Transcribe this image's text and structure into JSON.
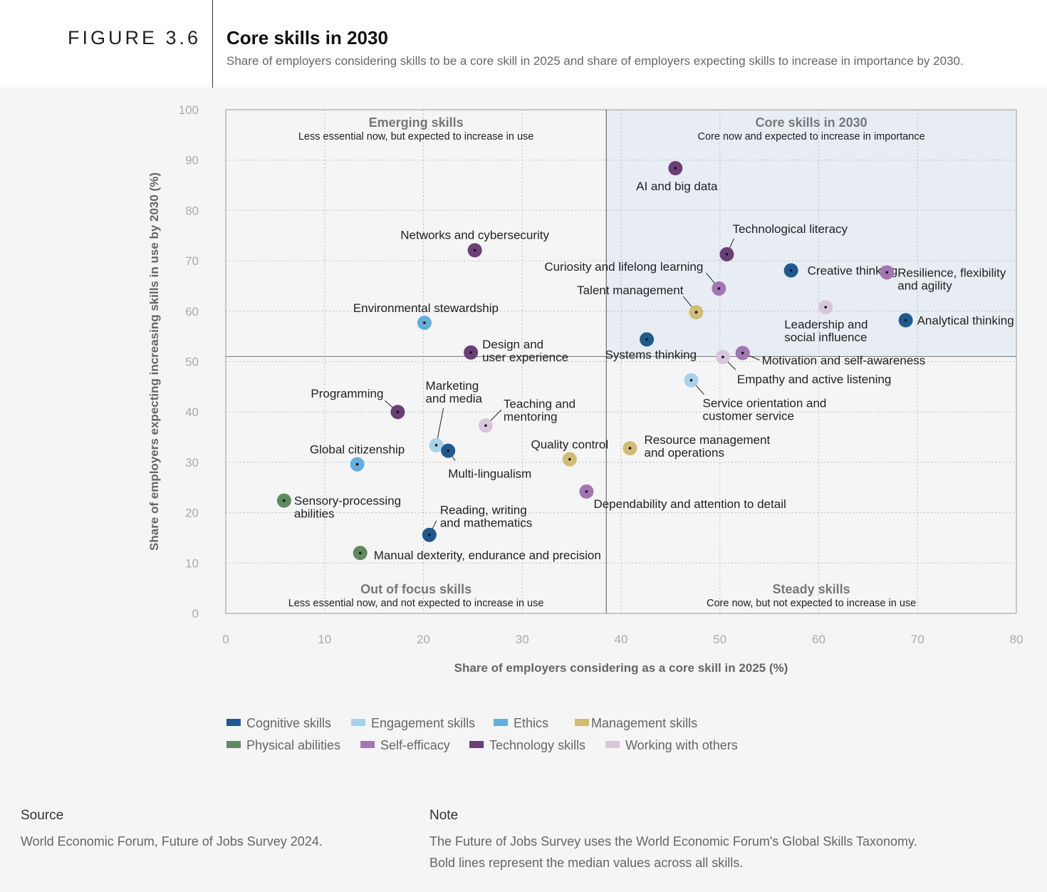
{
  "header": {
    "figure_label": "FIGURE 3.6",
    "title": "Core skills in 2030",
    "subtitle": "Share of employers considering skills to be a core skill in 2025 and share of employers expecting skills to increase in importance by 2030."
  },
  "colors": {
    "Cognitive skills": "#1f5a8e",
    "Engagement skills": "#a8d2ec",
    "Ethics": "#62aedd",
    "Management skills": "#d2bb72",
    "Physical abilities": "#5f8a5e",
    "Self-efficacy": "#a475b5",
    "Technology skills": "#6a3f76",
    "Working with others": "#d8c6dc"
  },
  "chart_data": {
    "type": "scatter",
    "xlabel": "Share of employers considering as a core skill in 2025 (%)",
    "ylabel": "Share of employers expecting increasing skills in use by 2030 (%)",
    "xlim": [
      0,
      80
    ],
    "ylim": [
      0,
      100
    ],
    "xticks": [
      "0",
      "10",
      "20",
      "30",
      "40",
      "50",
      "60",
      "70",
      "80"
    ],
    "yticks": [
      "0",
      "10",
      "20",
      "30",
      "40",
      "50",
      "60",
      "70",
      "80",
      "90",
      "100"
    ],
    "median_x": 38.5,
    "median_y": 51,
    "grid": true,
    "quadrants": [
      {
        "title": "Emerging skills",
        "subtitle": "Less essential now, but expected to increase in use",
        "position": "top-left"
      },
      {
        "title": "Core skills in 2030",
        "subtitle": "Core now and expected to increase in importance",
        "position": "top-right"
      },
      {
        "title": "Out of focus skills",
        "subtitle": "Less essential now, and not expected to increase in use",
        "position": "bottom-left"
      },
      {
        "title": "Steady skills",
        "subtitle": "Core now, but not expected to increase in use",
        "position": "bottom-right"
      }
    ],
    "points": [
      {
        "label": "AI and big data",
        "x": 45.5,
        "y": 88.4,
        "category": "Technology skills"
      },
      {
        "label": "Technological literacy",
        "x": 50.7,
        "y": 71.3,
        "category": "Technology skills"
      },
      {
        "label": "Creative thinking",
        "x": 57.2,
        "y": 68.1,
        "category": "Cognitive skills"
      },
      {
        "label": "Resilience, flexibility and agility",
        "x": 66.9,
        "y": 67.7,
        "category": "Self-efficacy"
      },
      {
        "label": "Curiosity and lifelong learning",
        "x": 49.9,
        "y": 64.5,
        "category": "Self-efficacy"
      },
      {
        "label": "Talent management",
        "x": 47.6,
        "y": 59.8,
        "category": "Management skills"
      },
      {
        "label": "Leadership and social influence",
        "x": 60.7,
        "y": 60.8,
        "category": "Working with others"
      },
      {
        "label": "Analytical thinking",
        "x": 68.8,
        "y": 58.2,
        "category": "Cognitive skills"
      },
      {
        "label": "Systems thinking",
        "x": 42.6,
        "y": 54.4,
        "category": "Cognitive skills"
      },
      {
        "label": "Motivation and self-awareness",
        "x": 52.3,
        "y": 51.7,
        "category": "Self-efficacy"
      },
      {
        "label": "Empathy and active listening",
        "x": 50.3,
        "y": 50.9,
        "category": "Working with others"
      },
      {
        "label": "Service orientation and customer service",
        "x": 47.1,
        "y": 46.3,
        "category": "Engagement skills"
      },
      {
        "label": "Networks and cybersecurity",
        "x": 25.2,
        "y": 72.1,
        "category": "Technology skills"
      },
      {
        "label": "Environmental stewardship",
        "x": 20.1,
        "y": 57.7,
        "category": "Ethics"
      },
      {
        "label": "Design and user experience",
        "x": 24.8,
        "y": 51.8,
        "category": "Technology skills"
      },
      {
        "label": "Programming",
        "x": 17.4,
        "y": 40.0,
        "category": "Technology skills"
      },
      {
        "label": "Marketing and media",
        "x": 21.3,
        "y": 33.4,
        "category": "Engagement skills"
      },
      {
        "label": "Teaching and mentoring",
        "x": 26.3,
        "y": 37.3,
        "category": "Working with others"
      },
      {
        "label": "Multi-lingualism",
        "x": 22.5,
        "y": 32.3,
        "category": "Cognitive skills"
      },
      {
        "label": "Global citizenship",
        "x": 13.3,
        "y": 29.6,
        "category": "Ethics"
      },
      {
        "label": "Quality control",
        "x": 34.8,
        "y": 30.6,
        "category": "Management skills"
      },
      {
        "label": "Resource management and operations",
        "x": 40.9,
        "y": 32.8,
        "category": "Management skills"
      },
      {
        "label": "Dependability and attention to detail",
        "x": 36.5,
        "y": 24.2,
        "category": "Self-efficacy"
      },
      {
        "label": "Sensory-processing abilities",
        "x": 5.9,
        "y": 22.4,
        "category": "Physical abilities"
      },
      {
        "label": "Reading, writing and mathematics",
        "x": 20.6,
        "y": 15.6,
        "category": "Cognitive skills"
      },
      {
        "label": "Manual dexterity, endurance and precision",
        "x": 13.6,
        "y": 12.0,
        "category": "Physical abilities"
      }
    ]
  },
  "legend": [
    "Cognitive skills",
    "Engagement skills",
    "Ethics",
    "Management skills",
    "Physical abilities",
    "Self-efficacy",
    "Technology skills",
    "Working with others"
  ],
  "footer": {
    "source_heading": "Source",
    "source_text": "World Economic Forum, Future of Jobs Survey 2024.",
    "note_heading": "Note",
    "note_line1": "The Future of Jobs Survey uses the World Economic Forum's Global Skills Taxonomy.",
    "note_line2": "Bold lines represent the median values across all skills."
  }
}
